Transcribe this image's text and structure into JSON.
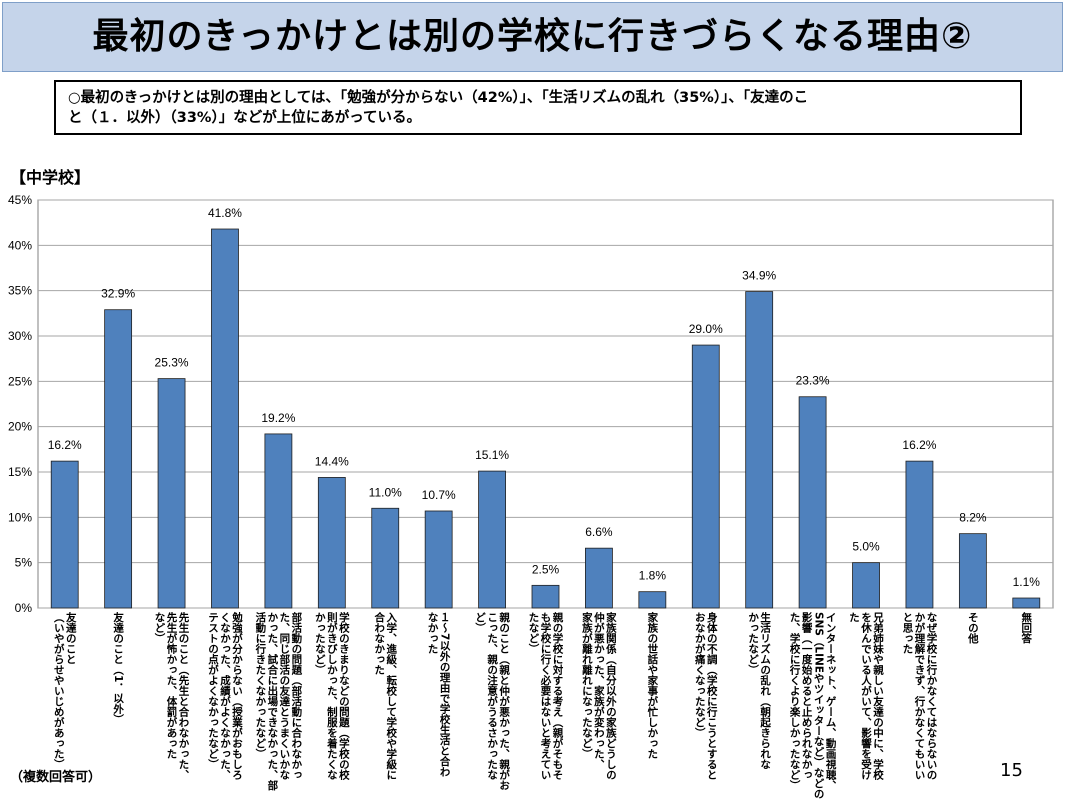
{
  "header": {
    "title": "最初のきっかけとは別の学校に行きづらくなる理由②"
  },
  "summary": {
    "line1": "○最初のきっかけとは別の理由としては、「勉強が分からない（42%）」、「生活リズムの乱れ（35%）」、「友達のこ",
    "line2": "と（１．以外）（33%）」などが上位にあがっている。"
  },
  "section_label": "【中学校】",
  "footnote": "（複数回答可）",
  "page_number": "15",
  "colors": {
    "bar": "#4f81bd",
    "title_bg": "#c5d4ea"
  },
  "chart_data": {
    "type": "bar",
    "ylim": [
      0,
      45
    ],
    "yticks": [
      "0%",
      "5%",
      "10%",
      "15%",
      "20%",
      "25%",
      "30%",
      "35%",
      "40%",
      "45%"
    ],
    "ytick_values": [
      0,
      5,
      10,
      15,
      20,
      25,
      30,
      35,
      40,
      45
    ],
    "grid": true,
    "categories": [
      [
        "友達のこと",
        "（いやがらせやいじめがあった）"
      ],
      [
        "友達のこと（1．以外）"
      ],
      [
        "先生のこと（先生と合わなかった、",
        "先生が怖かった、体罰があった",
        "など）"
      ],
      [
        "勉強が分からない（授業がおもしろ",
        "くなかった、成績がよくなかった、",
        "テストの点がよくなかったなど）"
      ],
      [
        "部活動の問題（部活動に合わなかっ",
        "た、同じ部活の友達とうまくいかな",
        "かった、試合に出場できなかった、部",
        "活動に行きたくなかったなど）"
      ],
      [
        "学校のきまりなどの問題（学校の校",
        "則がきびしかった、制服を着たくな",
        "かったなど）"
      ],
      [
        "入学、進級、転校して学校や学級に",
        "合わなかった"
      ],
      [
        "１～7以外の理由で学校生活と合わ",
        "なかった"
      ],
      [
        "親のこと（親と仲が悪かった、親がお",
        "こった、親の注意がうるさかったな",
        "ど）"
      ],
      [
        "親の学校に対する考え（親がそもそ",
        "も学校に行く必要はないと考えてい",
        "たなど）"
      ],
      [
        "家族関係（自分以外の家族どうしの",
        "仲が悪かった、家族が変わった、",
        "家族が離れ離れになったなど）"
      ],
      [
        "家族の世話や家事が忙しかった"
      ],
      [
        "身体の不調（学校に行こうとすると",
        "おなかが痛くなったなど）"
      ],
      [
        "生活リズムの乱れ（朝起きられな",
        "かったなど）"
      ],
      [
        "インターネット、ゲーム、動画視聴、",
        "SNS（LINEやツイッターなど）などの",
        "影響（一度始めると止められなかっ",
        "た、学校に行くより楽しかったなど）"
      ],
      [
        "兄弟姉妹や親しい友達の中に、学校",
        "を休んでいる人がいて、影響を受け",
        "た"
      ],
      [
        "なぜ学校に行かなくてはならないの",
        "かが理解できず、行かなくてもいい",
        "と思った"
      ],
      [
        "その他"
      ],
      [
        "無回答"
      ]
    ],
    "values": [
      16.2,
      32.9,
      25.3,
      41.8,
      19.2,
      14.4,
      11.0,
      10.7,
      15.1,
      2.5,
      6.6,
      1.8,
      29.0,
      34.9,
      23.3,
      5.0,
      16.2,
      8.2,
      1.1
    ],
    "data_labels": [
      "16.2%",
      "32.9%",
      "25.3%",
      "41.8%",
      "19.2%",
      "14.4%",
      "11.0%",
      "10.7%",
      "15.1%",
      "2.5%",
      "6.6%",
      "1.8%",
      "29.0%",
      "34.9%",
      "23.3%",
      "5.0%",
      "16.2%",
      "8.2%",
      "1.1%"
    ]
  }
}
